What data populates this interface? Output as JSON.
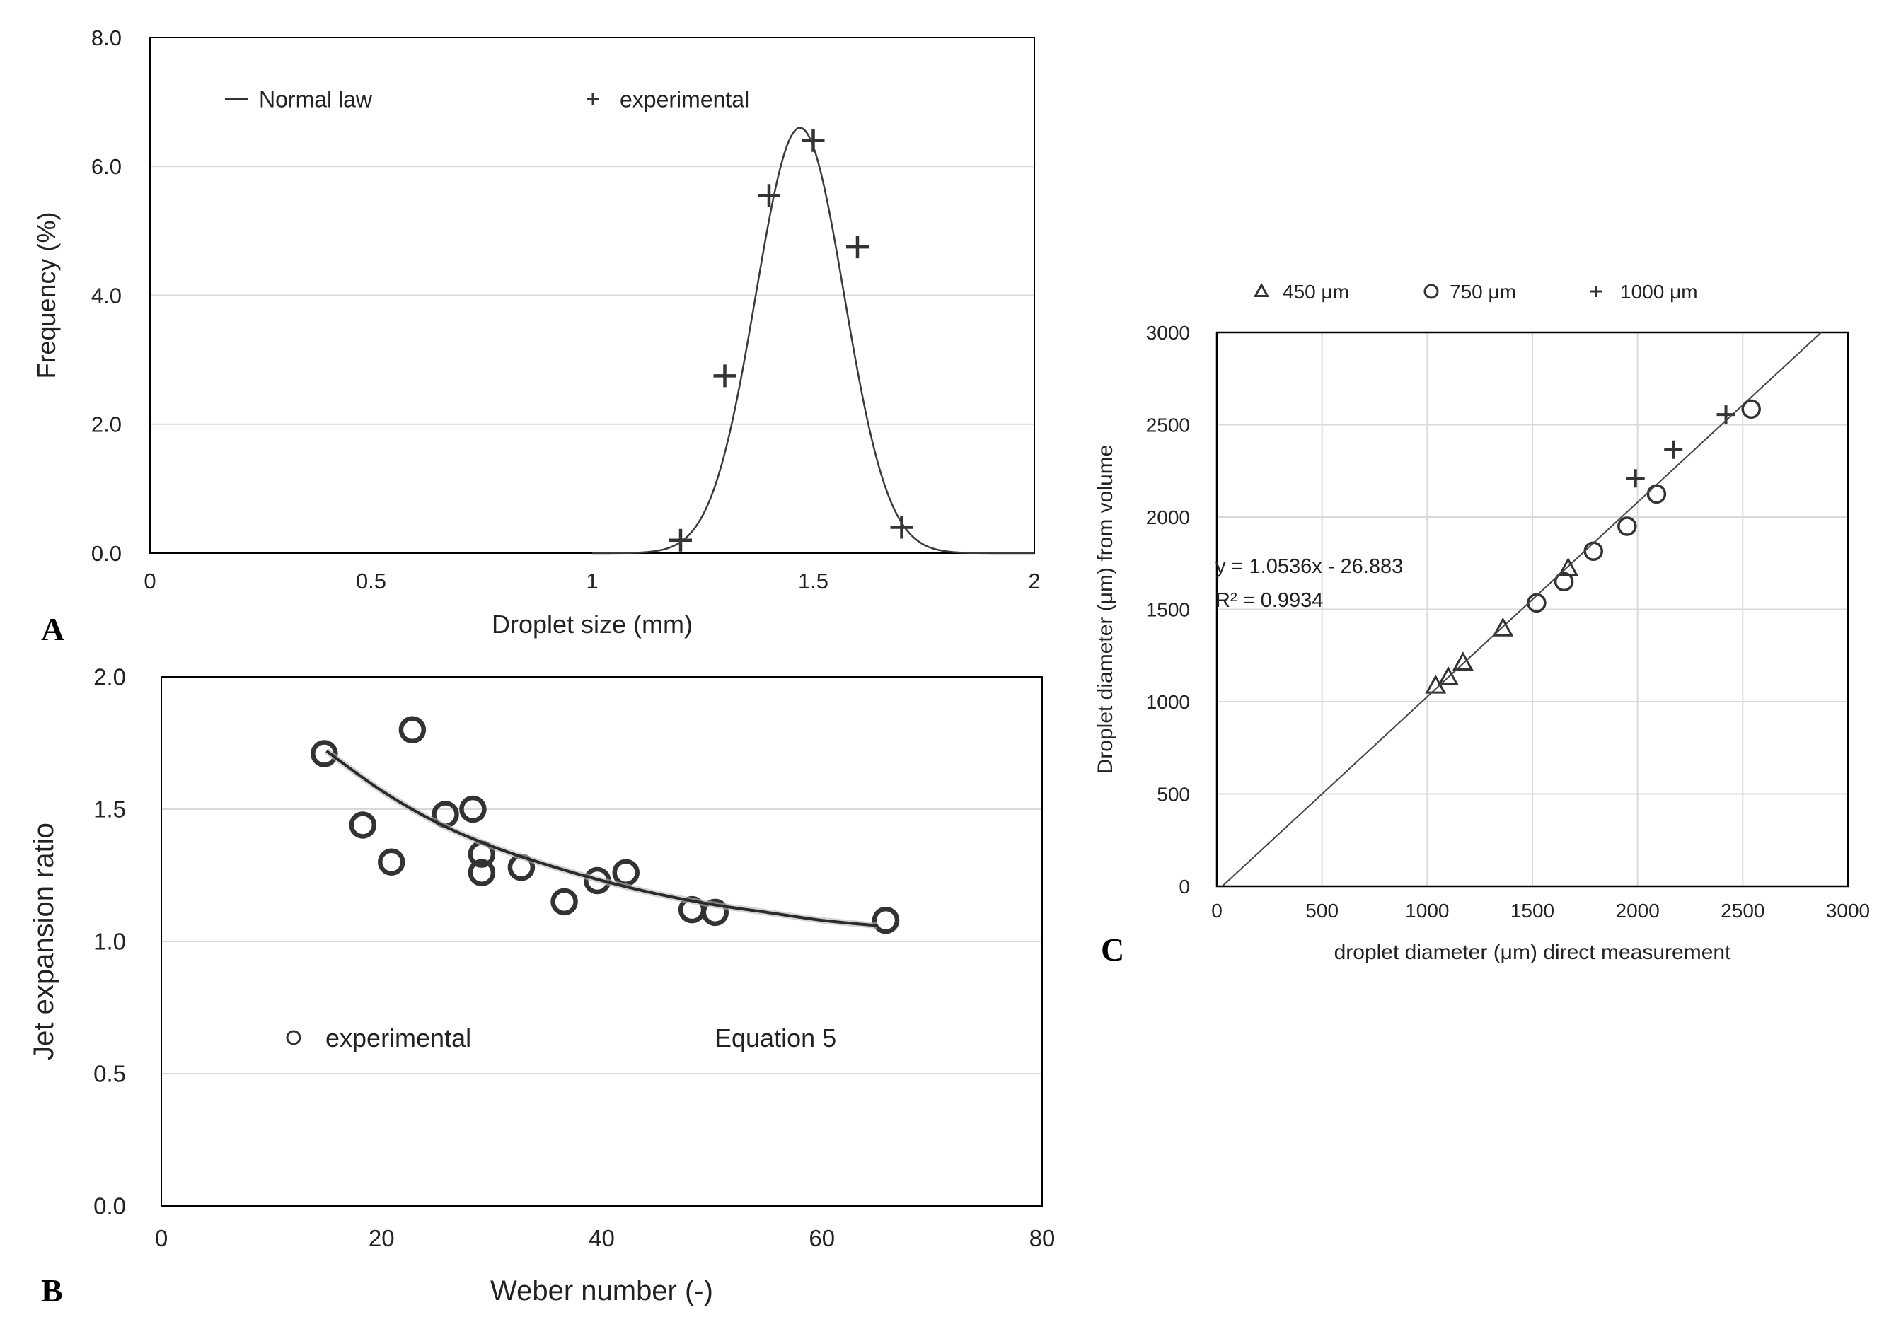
{
  "chart_data": [
    {
      "panel": "A",
      "type": "scatter",
      "xlabel": "Droplet size (mm)",
      "ylabel": "Frequency (%)",
      "xlim": [
        0,
        2
      ],
      "ylim": [
        0,
        8
      ],
      "x_ticks": [
        "0",
        "0.5",
        "1",
        "1.5",
        "2"
      ],
      "y_ticks": [
        "0.0",
        "2.0",
        "4.0",
        "6.0",
        "8.0"
      ],
      "grid": "horizontal",
      "legend": [
        "Normal law",
        "experimental"
      ],
      "series": [
        {
          "name": "experimental",
          "marker": "plus",
          "points": [
            [
              1.2,
              0.2
            ],
            [
              1.3,
              2.75
            ],
            [
              1.4,
              5.55
            ],
            [
              1.5,
              6.4
            ],
            [
              1.6,
              4.75
            ],
            [
              1.7,
              0.4
            ]
          ]
        },
        {
          "name": "Normal law",
          "kind": "curve",
          "mean": 1.47,
          "sd": 0.1,
          "peak": 6.6,
          "x_range": [
            1.0,
            2.0
          ]
        }
      ]
    },
    {
      "panel": "B",
      "type": "scatter",
      "xlabel": "Weber number (-)",
      "ylabel": "Jet expansion ratio",
      "xlim": [
        0,
        80
      ],
      "ylim": [
        0,
        2
      ],
      "x_ticks": [
        "0",
        "20",
        "40",
        "60",
        "80"
      ],
      "y_ticks": [
        "0.0",
        "0.5",
        "1.0",
        "1.5",
        "2.0"
      ],
      "grid": "horizontal",
      "legend": [
        "experimental",
        "Equation 5"
      ],
      "series": [
        {
          "name": "experimental",
          "marker": "circle",
          "points": [
            [
              14.8,
              1.71
            ],
            [
              18.3,
              1.44
            ],
            [
              20.9,
              1.3
            ],
            [
              22.8,
              1.8
            ],
            [
              25.8,
              1.48
            ],
            [
              28.3,
              1.5
            ],
            [
              29.1,
              1.33
            ],
            [
              29.1,
              1.26
            ],
            [
              32.7,
              1.28
            ],
            [
              36.6,
              1.15
            ],
            [
              39.6,
              1.23
            ],
            [
              42.2,
              1.26
            ],
            [
              48.2,
              1.12
            ],
            [
              50.3,
              1.11
            ],
            [
              65.8,
              1.08
            ]
          ]
        },
        {
          "name": "Equation 5",
          "kind": "curve",
          "x_range": [
            15,
            65
          ],
          "points": [
            [
              15,
              1.72
            ],
            [
              20,
              1.57
            ],
            [
              25,
              1.45
            ],
            [
              30,
              1.36
            ],
            [
              35,
              1.29
            ],
            [
              40,
              1.23
            ],
            [
              45,
              1.18
            ],
            [
              50,
              1.14
            ],
            [
              55,
              1.11
            ],
            [
              60,
              1.08
            ],
            [
              65,
              1.06
            ]
          ]
        }
      ]
    },
    {
      "panel": "C",
      "type": "scatter",
      "xlabel": "droplet diameter (μm) direct measurement",
      "ylabel": "Droplet diameter (μm) from volume",
      "xlim": [
        0,
        3000
      ],
      "ylim": [
        0,
        3000
      ],
      "x_ticks": [
        "0",
        "500",
        "1000",
        "1500",
        "2000",
        "2500",
        "3000"
      ],
      "y_ticks": [
        "0",
        "500",
        "1000",
        "1500",
        "2000",
        "2500",
        "3000"
      ],
      "grid": "both",
      "legend": [
        "450 μm",
        "750 μm",
        "1000 μm"
      ],
      "annotation": [
        "y = 1.0536x - 26.883",
        "R² = 0.9934"
      ],
      "trendline": {
        "slope": 1.0536,
        "intercept": -26.883
      },
      "series": [
        {
          "name": "450 μm",
          "marker": "triangle",
          "points": [
            [
              1040,
              1085
            ],
            [
              1100,
              1130
            ],
            [
              1170,
              1210
            ],
            [
              1360,
              1395
            ],
            [
              1670,
              1720
            ]
          ]
        },
        {
          "name": "750 μm",
          "marker": "circle",
          "points": [
            [
              1520,
              1535
            ],
            [
              1650,
              1650
            ],
            [
              1790,
              1815
            ],
            [
              1950,
              1950
            ],
            [
              2090,
              2125
            ],
            [
              2540,
              2585
            ]
          ]
        },
        {
          "name": "1000 μm",
          "marker": "plus",
          "points": [
            [
              1990,
              2210
            ],
            [
              2170,
              2365
            ],
            [
              2420,
              2555
            ]
          ]
        }
      ]
    }
  ],
  "panel_letters": [
    "A",
    "B",
    "C"
  ],
  "colors": {
    "data": "#333333",
    "grid": "#d9d9d9",
    "frame": "#000000",
    "text": "#222222"
  }
}
